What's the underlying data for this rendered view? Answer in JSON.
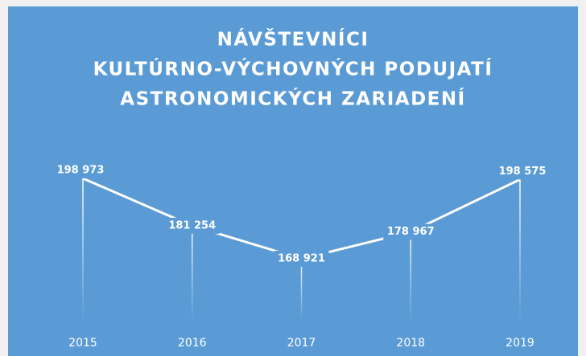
{
  "chart_data": {
    "type": "line",
    "title": [
      "NÁVŠTEVNÍCI",
      "KULTÚRNO-VÝCHOVNÝCH PODUJATÍ",
      "ASTRONOMICKÝCH ZARIADENÍ"
    ],
    "categories": [
      "2015",
      "2016",
      "2017",
      "2018",
      "2019"
    ],
    "values": [
      198973,
      181254,
      168921,
      178967,
      198575
    ],
    "value_labels": [
      "198 973",
      "181 254",
      "168 921",
      "178 967",
      "198 575"
    ],
    "color": "#ffffff",
    "background": "#5b9bd5"
  }
}
